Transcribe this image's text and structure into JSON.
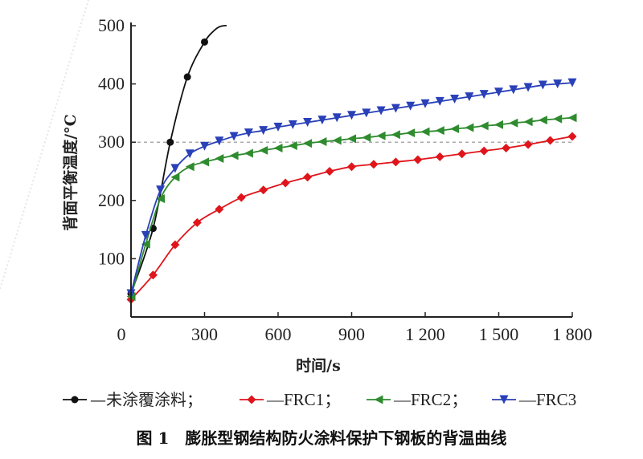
{
  "chart_data": {
    "type": "line",
    "xlabel": "时间/s",
    "ylabel": "背面平衡温度/°C",
    "xlim": [
      0,
      1800
    ],
    "ylim": [
      0,
      500
    ],
    "x_ticks": [
      0,
      300,
      600,
      900,
      1200,
      1500,
      1800
    ],
    "x_tick_labels": [
      "0",
      "300",
      "600",
      "900",
      "1 200",
      "1 500",
      "1 800"
    ],
    "y_ticks": [
      100,
      200,
      300,
      400,
      500
    ],
    "y_tick_labels": [
      "100",
      "200",
      "300",
      "400",
      "500"
    ],
    "reference_line": {
      "y": 300,
      "style": "dashed",
      "color": "#aaaaaa"
    },
    "legend_position": "bottom",
    "series": [
      {
        "name": "未涂覆涂料",
        "legend_label": "—未涂覆涂料；",
        "color": "#111111",
        "marker": "circle",
        "x": [
          0,
          90,
          160,
          230,
          300,
          340,
          360,
          380,
          390
        ],
        "y": [
          40,
          152,
          300,
          412,
          472,
          492,
          498,
          500,
          500
        ],
        "markers_x": [
          0,
          90,
          160,
          230,
          300
        ],
        "markers_y": [
          40,
          152,
          300,
          412,
          472
        ]
      },
      {
        "name": "FRC1",
        "legend_label": "—FRC1；",
        "color": "#e0151b",
        "marker": "diamond",
        "x": [
          0,
          90,
          180,
          270,
          360,
          450,
          540,
          630,
          720,
          810,
          900,
          990,
          1080,
          1170,
          1260,
          1350,
          1440,
          1530,
          1620,
          1710,
          1800
        ],
        "y": [
          30,
          72,
          124,
          162,
          185,
          205,
          218,
          230,
          240,
          250,
          258,
          262,
          266,
          270,
          275,
          280,
          285,
          290,
          296,
          303,
          310
        ]
      },
      {
        "name": "FRC2",
        "legend_label": "—FRC2；",
        "color": "#2e8b2e",
        "marker": "triangle-left",
        "x": [
          0,
          60,
          120,
          180,
          240,
          300,
          360,
          420,
          480,
          540,
          600,
          660,
          720,
          780,
          840,
          900,
          960,
          1020,
          1080,
          1140,
          1200,
          1260,
          1320,
          1380,
          1440,
          1500,
          1560,
          1620,
          1680,
          1740,
          1800
        ],
        "y": [
          35,
          125,
          203,
          240,
          258,
          266,
          272,
          277,
          281,
          286,
          290,
          294,
          298,
          301,
          303,
          306,
          308,
          311,
          313,
          316,
          318,
          320,
          323,
          325,
          328,
          330,
          333,
          335,
          338,
          340,
          342
        ]
      },
      {
        "name": "FRC3",
        "legend_label": "—FRC3",
        "color": "#2a40b8",
        "marker": "triangle-down",
        "x": [
          0,
          60,
          120,
          180,
          240,
          300,
          360,
          420,
          480,
          540,
          600,
          660,
          720,
          780,
          840,
          900,
          960,
          1020,
          1080,
          1140,
          1200,
          1260,
          1320,
          1380,
          1440,
          1500,
          1560,
          1620,
          1680,
          1740,
          1800
        ],
        "y": [
          40,
          140,
          218,
          255,
          280,
          293,
          302,
          310,
          316,
          320,
          326,
          330,
          334,
          338,
          342,
          346,
          350,
          354,
          358,
          362,
          366,
          370,
          374,
          378,
          382,
          386,
          390,
          394,
          398,
          400,
          402
        ]
      }
    ],
    "caption": "图 1　膨胀型钢结构防火涂料保护下钢板的背温曲线"
  }
}
